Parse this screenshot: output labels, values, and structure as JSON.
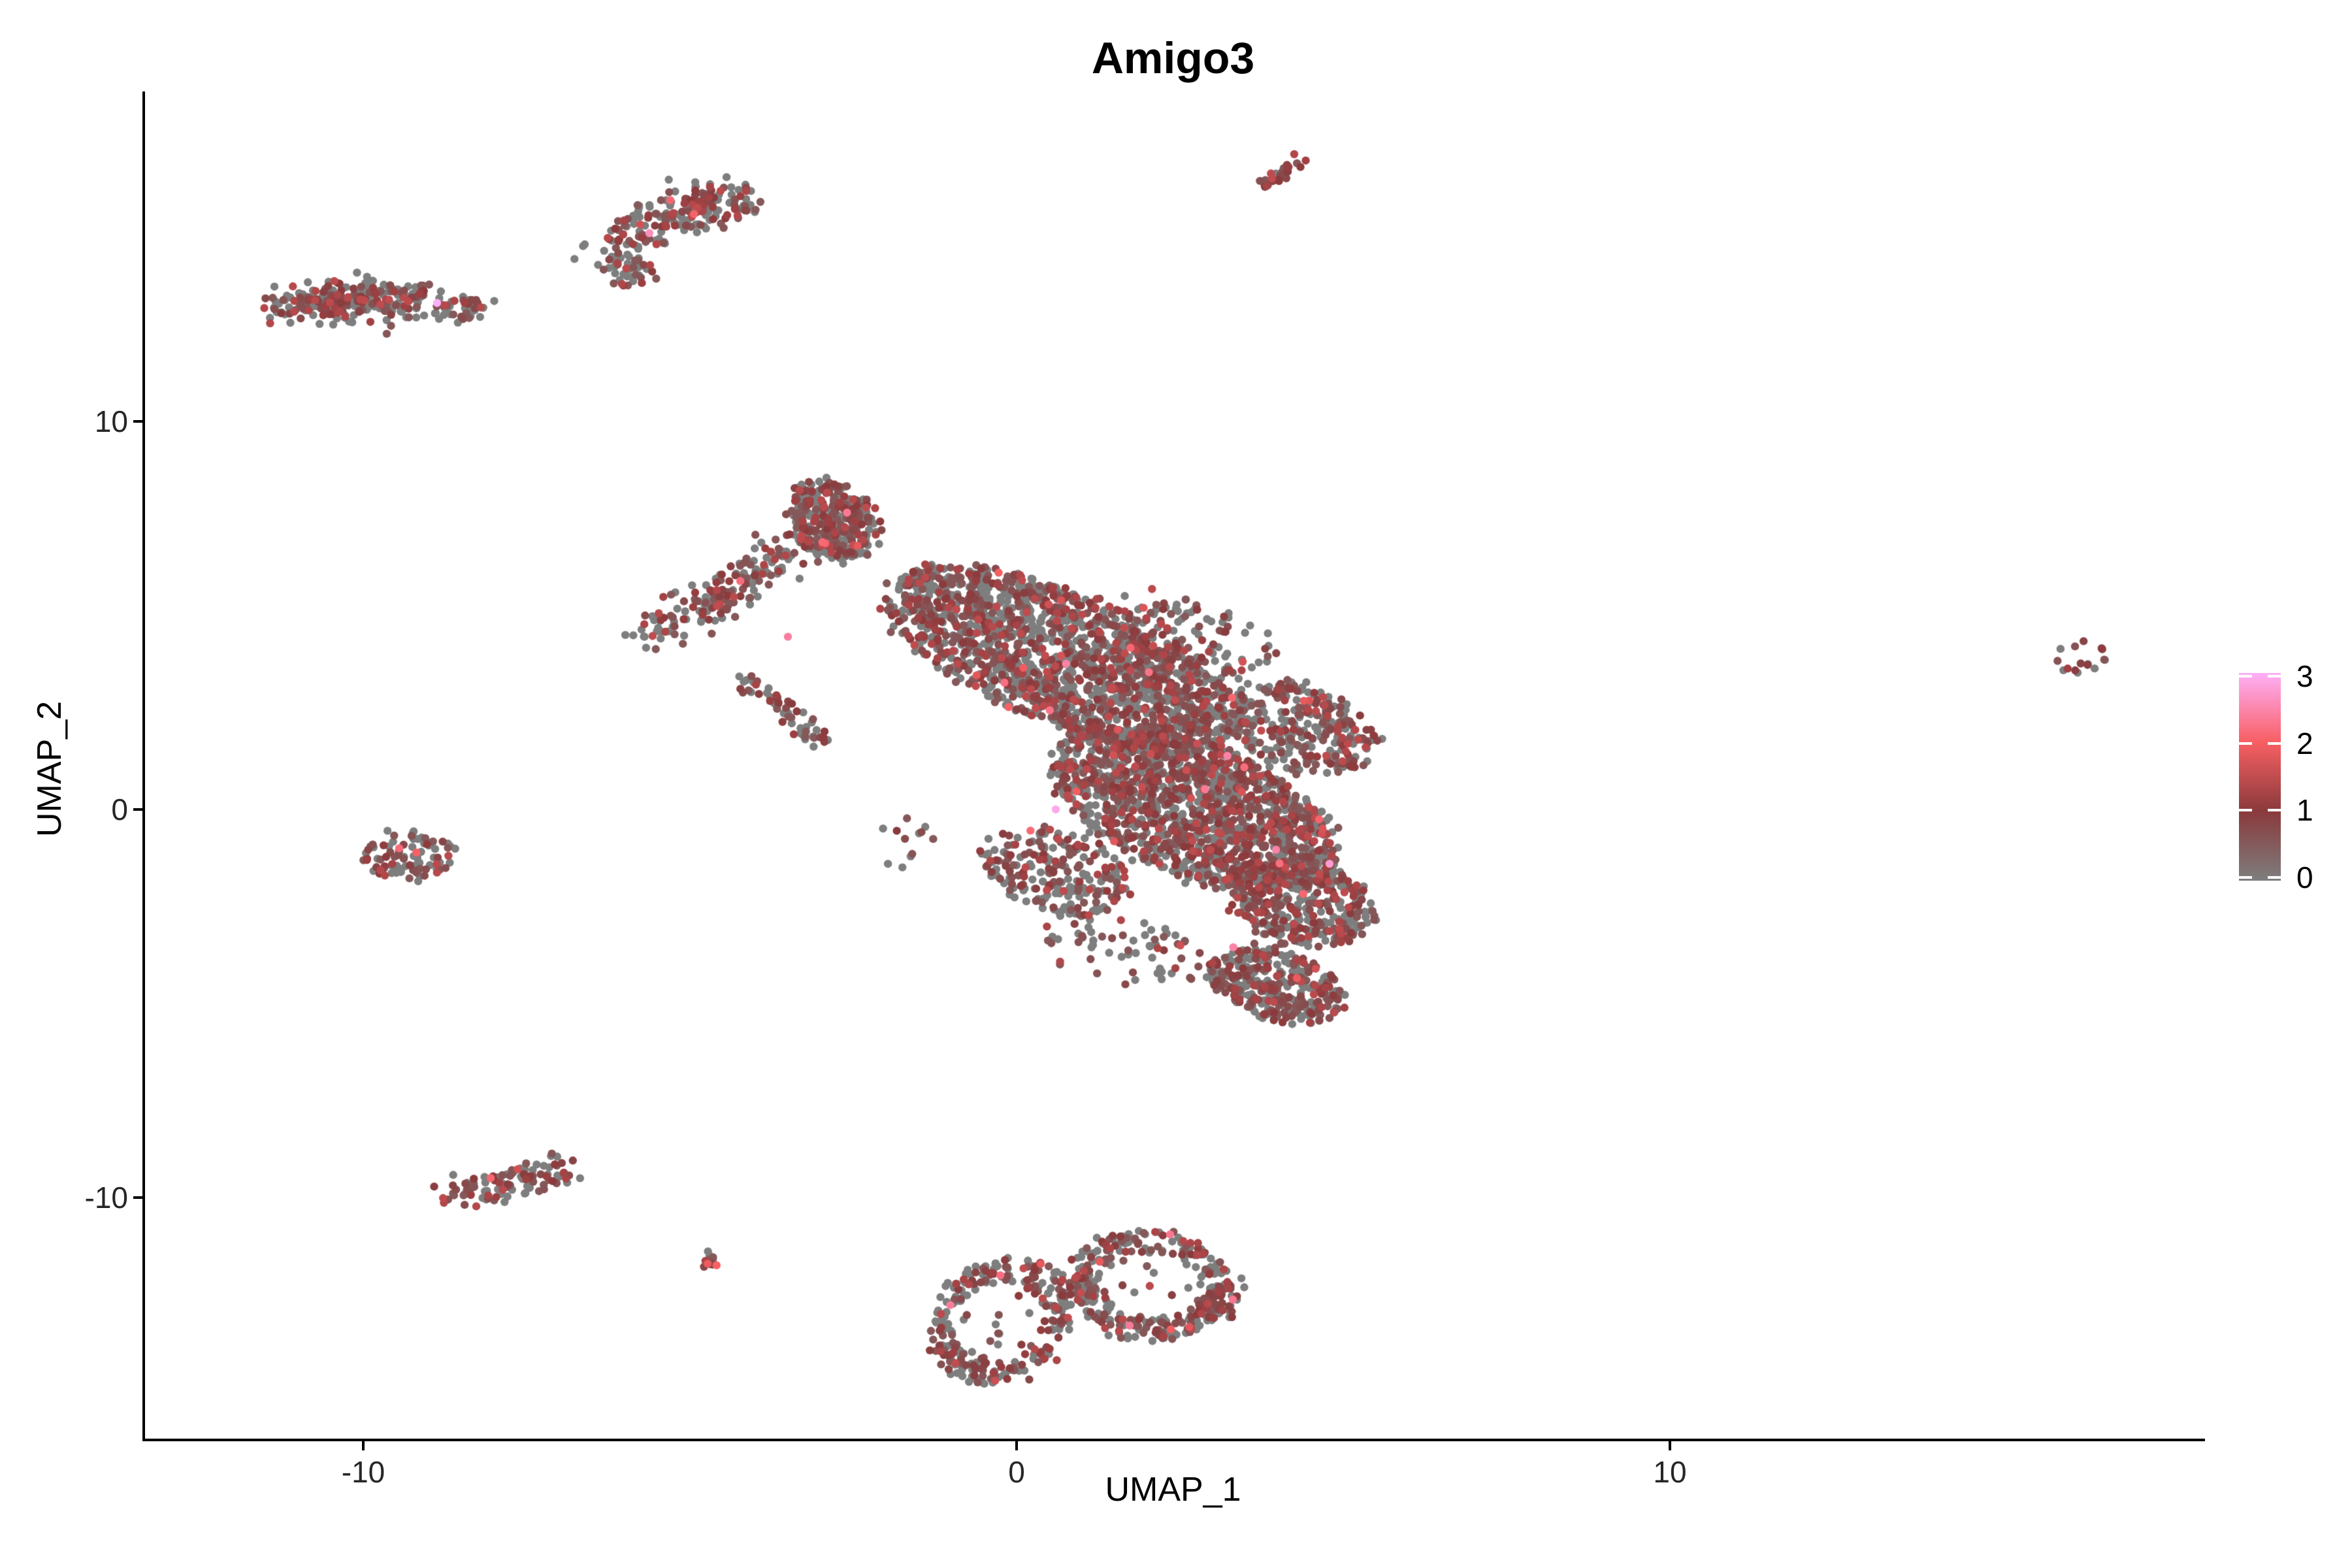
{
  "title": "Amigo3",
  "x_axis": {
    "label": "UMAP_1",
    "tick_labels": [
      "-10",
      "0",
      "10"
    ],
    "tick_values": [
      -10,
      0,
      10
    ],
    "range": [
      -13.36,
      18.15
    ]
  },
  "y_axis": {
    "label": "UMAP_2",
    "tick_labels": [
      "10",
      "0",
      "-10"
    ],
    "tick_values": [
      10,
      0,
      -10
    ],
    "range": [
      -16.28,
      18.5
    ]
  },
  "chart_data": {
    "type": "scatter",
    "title": "Amigo3",
    "xlabel": "UMAP_1",
    "ylabel": "UMAP_2",
    "xlim": [
      -13.36,
      18.15
    ],
    "ylim": [
      -16.28,
      18.5
    ],
    "grid": false,
    "legend_position": "right",
    "point_radius_px": 6.2,
    "seed": 42,
    "color_scale": {
      "range": [
        0,
        3
      ],
      "tick_labels": [
        "3",
        "2",
        "1",
        "0"
      ],
      "tick_values": [
        3,
        2,
        1,
        0
      ],
      "gradient_stops": [
        {
          "value": 0,
          "color": "#7E7E7E"
        },
        {
          "value": 1,
          "color": "#8A3A3C"
        },
        {
          "value": 2,
          "color": "#F75F63"
        },
        {
          "value": 3,
          "color": "#FFB0F8"
        }
      ]
    },
    "clusters": [
      {
        "name": "top-streak",
        "shape": "segment",
        "from": [
          3.73,
          16.0
        ],
        "to": [
          4.38,
          16.75
        ],
        "sd": 0.09,
        "count": 26,
        "expr_frac": 0.78
      },
      {
        "name": "north-cluster-tip",
        "shape": "ellipse",
        "center": [
          -4.5,
          15.6
        ],
        "radii": [
          0.58,
          0.55
        ],
        "tilt_deg": 10,
        "count": 78,
        "expr_frac": 0.55
      },
      {
        "name": "north-cluster-band",
        "shape": "segment",
        "from": [
          -4.95,
          15.7
        ],
        "to": [
          -6.2,
          14.5
        ],
        "sd": 0.3,
        "count": 118,
        "expr_frac": 0.5
      },
      {
        "name": "north-cluster-knob",
        "shape": "ellipse",
        "center": [
          -5.95,
          13.9
        ],
        "radii": [
          0.4,
          0.38
        ],
        "tilt_deg": 0,
        "count": 42,
        "expr_frac": 0.45
      },
      {
        "name": "west-band",
        "shape": "segment",
        "from": [
          -11.3,
          12.95
        ],
        "to": [
          -9.15,
          13.2
        ],
        "sd": 0.28,
        "count": 255,
        "expr_frac": 0.5
      },
      {
        "name": "west-band-east-blob",
        "shape": "ellipse",
        "center": [
          -8.6,
          12.95
        ],
        "radii": [
          0.48,
          0.33
        ],
        "tilt_deg": -15,
        "count": 42,
        "expr_frac": 0.5
      },
      {
        "name": "west-band-outlier-dot",
        "shape": "ellipse",
        "center": [
          -8.02,
          13.1
        ],
        "radii": [
          0.02,
          0.02
        ],
        "tilt_deg": 0,
        "count": 1,
        "expr_frac": 0
      },
      {
        "name": "main-hat",
        "shape": "ellipse",
        "center": [
          -2.82,
          7.45
        ],
        "radii": [
          0.65,
          1.05
        ],
        "tilt_deg": 15,
        "count": 330,
        "expr_frac": 0.5
      },
      {
        "name": "main-left-arm",
        "shape": "segment",
        "from": [
          -5.55,
          4.4
        ],
        "to": [
          -3.4,
          6.75
        ],
        "sd": 0.23,
        "count": 170,
        "expr_frac": 0.5
      },
      {
        "name": "main-dash",
        "shape": "segment",
        "from": [
          -4.1,
          3.4
        ],
        "to": [
          -3.05,
          1.7
        ],
        "sd": 0.14,
        "count": 56,
        "expr_frac": 0.5
      },
      {
        "name": "main-west-sparse",
        "shape": "ellipse",
        "center": [
          -1.75,
          -0.7
        ],
        "radii": [
          0.4,
          0.8
        ],
        "tilt_deg": 0,
        "count": 12,
        "expr_frac": 0.4
      },
      {
        "name": "main-body-upper",
        "shape": "ellipse",
        "center": [
          0.7,
          3.9
        ],
        "radii": [
          3.3,
          1.5
        ],
        "tilt_deg": -40,
        "count": 1750,
        "expr_frac": 0.48
      },
      {
        "name": "main-body-lower",
        "shape": "ellipse",
        "center": [
          2.7,
          0.0
        ],
        "radii": [
          2.6,
          1.5
        ],
        "tilt_deg": -42,
        "count": 1480,
        "expr_frac": 0.5
      },
      {
        "name": "main-right-shoulder",
        "shape": "ellipse",
        "center": [
          4.35,
          2.1
        ],
        "radii": [
          1.35,
          0.95
        ],
        "tilt_deg": -50,
        "count": 300,
        "expr_frac": 0.5
      },
      {
        "name": "main-upper-sparse",
        "shape": "ellipse",
        "center": [
          2.8,
          4.5
        ],
        "radii": [
          1.4,
          0.8
        ],
        "tilt_deg": -35,
        "count": 90,
        "expr_frac": 0.45
      },
      {
        "name": "main-right-lobe",
        "shape": "ellipse",
        "center": [
          4.35,
          -2.4
        ],
        "radii": [
          1.25,
          0.95
        ],
        "tilt_deg": -50,
        "count": 400,
        "expr_frac": 0.52
      },
      {
        "name": "main-bottom-lobe",
        "shape": "ellipse",
        "center": [
          4.0,
          -4.55
        ],
        "radii": [
          1.15,
          0.8
        ],
        "tilt_deg": -40,
        "count": 330,
        "expr_frac": 0.56
      },
      {
        "name": "main-left-flank",
        "shape": "ellipse",
        "center": [
          0.6,
          -1.6
        ],
        "radii": [
          1.3,
          0.9
        ],
        "tilt_deg": -40,
        "count": 220,
        "expr_frac": 0.48
      },
      {
        "name": "main-under-sparse",
        "shape": "ellipse",
        "center": [
          1.6,
          -3.6
        ],
        "radii": [
          1.4,
          0.85
        ],
        "tilt_deg": -30,
        "count": 70,
        "expr_frac": 0.45
      },
      {
        "name": "west-mid-blob",
        "shape": "ellipse",
        "center": [
          -9.27,
          -1.15
        ],
        "radii": [
          0.72,
          0.65
        ],
        "tilt_deg": 0,
        "count": 88,
        "expr_frac": 0.5
      },
      {
        "name": "southwest-band",
        "shape": "segment",
        "from": [
          -8.55,
          -9.9
        ],
        "to": [
          -6.95,
          -9.3
        ],
        "sd": 0.24,
        "count": 106,
        "expr_frac": 0.5
      },
      {
        "name": "south-small-dot",
        "shape": "ellipse",
        "center": [
          -4.65,
          -11.65
        ],
        "radii": [
          0.18,
          0.27
        ],
        "tilt_deg": 20,
        "count": 13,
        "expr_frac": 0.7
      },
      {
        "name": "south-ring-left",
        "shape": "ring",
        "center": [
          -0.25,
          -13.2
        ],
        "radii": [
          1.05,
          1.65
        ],
        "tilt_deg": -10,
        "count": 255,
        "inner_count": 10,
        "expr_frac": 0.5
      },
      {
        "name": "south-ring-right",
        "shape": "ring",
        "center": [
          2.05,
          -12.25
        ],
        "radii": [
          1.25,
          1.4
        ],
        "tilt_deg": 15,
        "count": 265,
        "inner_count": 8,
        "expr_frac": 0.5
      },
      {
        "name": "south-ring-right-tip",
        "shape": "ellipse",
        "center": [
          3.15,
          -12.7
        ],
        "radii": [
          0.28,
          0.5
        ],
        "tilt_deg": -20,
        "count": 46,
        "expr_frac": 0.6
      },
      {
        "name": "south-ring-connector",
        "shape": "segment",
        "from": [
          0.7,
          -12.7
        ],
        "to": [
          1.2,
          -12.2
        ],
        "sd": 0.18,
        "count": 20,
        "expr_frac": 0.5
      },
      {
        "name": "east-small-cluster",
        "shape": "ellipse",
        "center": [
          16.3,
          3.9
        ],
        "radii": [
          0.38,
          0.45
        ],
        "tilt_deg": -40,
        "count": 16,
        "expr_frac": 0.55
      }
    ],
    "highlights": [
      [
        -8.87,
        13.05,
        3.0
      ],
      [
        0.6,
        0.0,
        2.9
      ],
      [
        1.73,
        -13.3,
        2.35
      ],
      [
        -5.3,
        15.7,
        2.1
      ],
      [
        -5.62,
        14.85,
        2.6
      ],
      [
        4.79,
        -1.4,
        2.75
      ],
      [
        -9.45,
        -1.0,
        2.15
      ],
      [
        -8.05,
        -9.5,
        2.1
      ],
      [
        -3.5,
        4.45,
        2.4
      ],
      [
        2.35,
        -10.95,
        2.3
      ]
    ]
  }
}
